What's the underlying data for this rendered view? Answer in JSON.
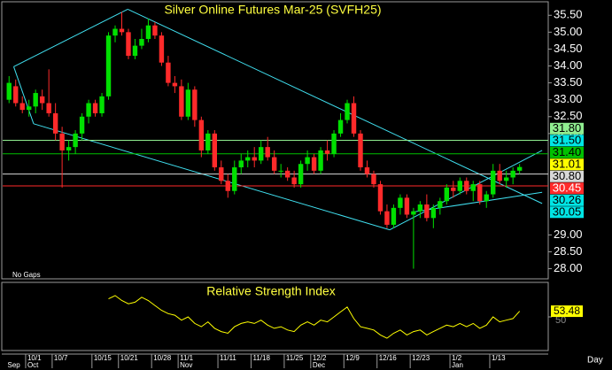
{
  "chart_data": [
    {
      "type": "candlestick",
      "title": "Silver Online Futures Mar-25 (SVFH25)",
      "annotations": [
        "No Gaps",
        "Day"
      ],
      "categories": [
        null,
        null,
        null,
        "10/1",
        null,
        null,
        null,
        "10/7",
        null,
        null,
        null,
        null,
        null,
        "10/15",
        null,
        null,
        null,
        "10/21",
        null,
        null,
        null,
        null,
        "10/28",
        null,
        null,
        null,
        "11/1",
        null,
        null,
        null,
        null,
        null,
        "11/11",
        null,
        null,
        null,
        null,
        "11/18",
        null,
        null,
        null,
        null,
        "11/25",
        null,
        null,
        null,
        "12/2",
        null,
        null,
        null,
        null,
        "12/9",
        null,
        null,
        null,
        null,
        "12/16",
        null,
        null,
        null,
        null,
        "12/23",
        null,
        null,
        null,
        null,
        null,
        "1/2",
        null,
        null,
        null,
        null,
        null,
        "1/13",
        null,
        null,
        null,
        null
      ],
      "months": [
        "Sep",
        null,
        null,
        "Oct",
        null,
        null,
        null,
        null,
        null,
        null,
        null,
        null,
        null,
        null,
        null,
        null,
        null,
        null,
        null,
        null,
        null,
        null,
        null,
        null,
        null,
        null,
        "Nov",
        null,
        null,
        null,
        null,
        null,
        null,
        null,
        null,
        null,
        null,
        null,
        null,
        null,
        null,
        null,
        null,
        null,
        null,
        null,
        "Dec",
        null,
        null,
        null,
        null,
        null,
        null,
        null,
        null,
        null,
        null,
        null,
        null,
        null,
        null,
        null,
        null,
        null,
        null,
        null,
        null,
        "Jan",
        null,
        null,
        null,
        null,
        null,
        null,
        null,
        null,
        null,
        null
      ],
      "open": [
        33.0,
        33.4,
        32.9,
        32.7,
        32.8,
        33.1,
        32.9,
        32.6,
        32.0,
        31.5,
        31.6,
        32.0,
        32.5,
        32.9,
        32.6,
        33.1,
        34.9,
        35.1,
        35.0,
        34.3,
        34.6,
        34.8,
        35.2,
        34.9,
        34.1,
        33.5,
        33.4,
        32.5,
        33.3,
        32.4,
        31.5,
        32.0,
        31.0,
        30.6,
        30.3,
        31.0,
        31.2,
        31.3,
        31.2,
        31.6,
        31.3,
        30.9,
        30.9,
        30.7,
        30.5,
        31.1,
        31.3,
        30.9,
        31.5,
        31.4,
        32.0,
        32.4,
        32.9,
        32.0,
        31.0,
        30.8,
        30.5,
        29.7,
        29.3,
        29.8,
        30.1,
        29.6,
        29.7,
        29.9,
        29.5,
        29.8,
        30.0,
        30.4,
        30.3,
        30.6,
        30.3,
        30.5,
        30.0,
        30.2,
        30.9,
        30.6,
        30.7,
        30.9
      ],
      "high": [
        33.7,
        33.6,
        33.1,
        33.0,
        33.3,
        33.3,
        33.9,
        32.9,
        32.2,
        31.8,
        32.1,
        32.6,
        33.0,
        33.0,
        33.2,
        35.0,
        35.2,
        35.6,
        35.1,
        34.8,
        35.1,
        35.4,
        35.3,
        35.0,
        34.3,
        33.7,
        33.6,
        33.5,
        33.4,
        32.5,
        32.1,
        32.1,
        31.2,
        30.8,
        31.2,
        31.4,
        31.5,
        31.6,
        31.8,
        31.9,
        31.5,
        31.1,
        31.0,
        30.9,
        31.2,
        31.5,
        31.4,
        31.6,
        31.8,
        32.1,
        32.6,
        33.0,
        33.1,
        32.1,
        31.2,
        30.9,
        30.6,
        29.9,
        29.9,
        30.2,
        30.2,
        29.8,
        30.0,
        30.2,
        29.9,
        30.1,
        30.5,
        30.6,
        30.7,
        30.7,
        30.6,
        30.6,
        30.3,
        31.1,
        31.1,
        30.9,
        31.0,
        31.1
      ],
      "low": [
        32.9,
        32.8,
        32.6,
        32.5,
        32.6,
        32.7,
        32.5,
        31.8,
        30.4,
        31.2,
        31.4,
        31.8,
        32.3,
        32.5,
        32.5,
        33.0,
        34.7,
        34.9,
        34.2,
        34.2,
        34.5,
        34.7,
        34.8,
        34.0,
        33.4,
        33.2,
        32.4,
        32.4,
        32.2,
        31.3,
        31.4,
        30.9,
        30.5,
        30.1,
        30.2,
        30.8,
        31.0,
        31.0,
        31.1,
        31.2,
        30.8,
        30.7,
        30.6,
        30.4,
        30.4,
        30.9,
        30.8,
        30.8,
        31.2,
        31.3,
        31.9,
        32.3,
        31.9,
        30.9,
        30.7,
        30.4,
        29.6,
        29.2,
        29.2,
        29.6,
        29.5,
        28.0,
        29.5,
        29.4,
        29.2,
        29.6,
        29.9,
        30.1,
        30.2,
        30.2,
        30.0,
        29.9,
        29.8,
        30.1,
        30.5,
        30.4,
        30.5,
        30.8
      ],
      "close": [
        33.5,
        32.9,
        32.7,
        32.8,
        33.2,
        32.9,
        32.6,
        32.0,
        31.5,
        31.6,
        32.0,
        32.5,
        32.9,
        32.6,
        33.1,
        34.9,
        35.1,
        35.0,
        34.3,
        34.6,
        34.8,
        35.2,
        34.9,
        34.1,
        33.5,
        33.4,
        32.5,
        33.3,
        32.4,
        31.5,
        32.0,
        31.0,
        30.6,
        30.3,
        31.0,
        31.2,
        31.3,
        31.2,
        31.6,
        31.3,
        30.9,
        30.9,
        30.7,
        30.5,
        31.1,
        31.3,
        30.9,
        31.5,
        31.4,
        32.0,
        32.4,
        32.9,
        32.0,
        31.0,
        30.8,
        30.5,
        29.7,
        29.3,
        29.8,
        30.1,
        29.6,
        29.7,
        29.9,
        29.5,
        29.8,
        30.0,
        30.4,
        30.3,
        30.6,
        30.3,
        30.5,
        30.0,
        30.2,
        30.9,
        30.6,
        30.7,
        30.9,
        31.01
      ],
      "up_color": "#00e000",
      "down_color": "#ff2a2a",
      "ylim": [
        27.7,
        35.9
      ],
      "yticks": [
        {
          "value": 28,
          "label": "28.00"
        },
        {
          "value": 28.5,
          "label": "28.50"
        },
        {
          "value": 29,
          "label": "29.00"
        },
        {
          "value": 32,
          "label": "32.00"
        },
        {
          "value": 32.5,
          "label": "32.50"
        },
        {
          "value": 33,
          "label": "33.00"
        },
        {
          "value": 33.5,
          "label": "33.50"
        },
        {
          "value": 34,
          "label": "34.00"
        },
        {
          "value": 34.5,
          "label": "34.50"
        },
        {
          "value": 35,
          "label": "35.00"
        },
        {
          "value": 35.5,
          "label": "35.50"
        }
      ],
      "levels": [
        {
          "value": 31.8,
          "label": "31.80",
          "color": "#90ee90",
          "line": true
        },
        {
          "value": 31.5,
          "label": "31.50",
          "color": "#00e5e5",
          "line": false
        },
        {
          "value": 31.4,
          "label": "31.40",
          "color": "#00c000",
          "line": true
        },
        {
          "value": 31.01,
          "label": "31.01",
          "color": "#ffff00",
          "line": false
        },
        {
          "value": 30.8,
          "label": "30.80",
          "color": "#d8d8d8",
          "line": true
        },
        {
          "value": 30.45,
          "label": "30.45",
          "color": "#ff2a2a",
          "line": true
        },
        {
          "value": 30.26,
          "label": "30.26",
          "color": "#00e5e5",
          "line": false
        },
        {
          "value": 30.05,
          "label": "30.05",
          "color": "#00e5e5",
          "line": false
        }
      ],
      "trendline_color": "#40e0f0",
      "trendlines": [
        {
          "x": [
            0.7,
            17.9
          ],
          "y": [
            33.98,
            35.68
          ]
        },
        {
          "x": [
            17.9,
            80.4
          ],
          "y": [
            35.68,
            29.93
          ]
        },
        {
          "x": [
            0.7,
            3.7
          ],
          "y": [
            33.98,
            32.29
          ]
        },
        {
          "x": [
            3.7,
            57.4
          ],
          "y": [
            32.29,
            29.15
          ]
        },
        {
          "x": [
            57.4,
            80.4
          ],
          "y": [
            29.15,
            31.5
          ]
        },
        {
          "x": [
            60.7,
            80.4
          ],
          "y": [
            29.67,
            30.26
          ]
        }
      ]
    },
    {
      "type": "line",
      "title": "Relative Strength Index",
      "color": "#ffff00",
      "values": [
        null,
        null,
        null,
        null,
        null,
        null,
        null,
        null,
        null,
        null,
        null,
        null,
        null,
        null,
        null,
        61,
        63,
        60,
        58,
        59,
        62,
        60,
        57,
        54,
        52,
        51,
        48,
        50,
        46,
        44,
        47,
        43,
        41,
        40,
        44,
        46,
        47,
        46,
        48,
        45,
        43,
        44,
        42,
        41,
        45,
        47,
        45,
        48,
        47,
        50,
        53,
        56,
        49,
        44,
        43,
        42,
        39,
        37,
        40,
        42,
        39,
        41,
        42,
        39,
        41,
        43,
        45,
        44,
        46,
        44,
        46,
        43,
        45,
        50,
        47,
        48,
        49,
        53.48
      ],
      "ylim": [
        30,
        70
      ],
      "yticks": [
        50
      ]
    }
  ]
}
